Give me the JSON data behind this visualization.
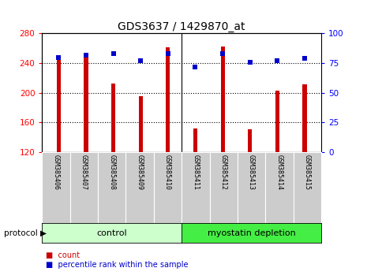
{
  "title": "GDS3637 / 1429870_at",
  "samples": [
    "GSM385406",
    "GSM385407",
    "GSM385408",
    "GSM385409",
    "GSM385410",
    "GSM385411",
    "GSM385412",
    "GSM385413",
    "GSM385414",
    "GSM385415"
  ],
  "counts": [
    246,
    249,
    212,
    195,
    261,
    152,
    262,
    151,
    203,
    211
  ],
  "percentiles": [
    80,
    82,
    83,
    77,
    83,
    72,
    83,
    76,
    77,
    79
  ],
  "bar_color": "#cc0000",
  "dot_color": "#0000cc",
  "ylim_left": [
    120,
    280
  ],
  "ylim_right": [
    0,
    100
  ],
  "yticks_left": [
    120,
    160,
    200,
    240,
    280
  ],
  "yticks_right": [
    0,
    25,
    50,
    75,
    100
  ],
  "control_label": "control",
  "myostatin_label": "myostatin depletion",
  "protocol_label": "protocol",
  "legend_count": "count",
  "legend_percentile": "percentile rank within the sample",
  "control_color": "#ccffcc",
  "myostatin_color": "#44ee44",
  "gray_color": "#cccccc",
  "title_fontsize": 10
}
